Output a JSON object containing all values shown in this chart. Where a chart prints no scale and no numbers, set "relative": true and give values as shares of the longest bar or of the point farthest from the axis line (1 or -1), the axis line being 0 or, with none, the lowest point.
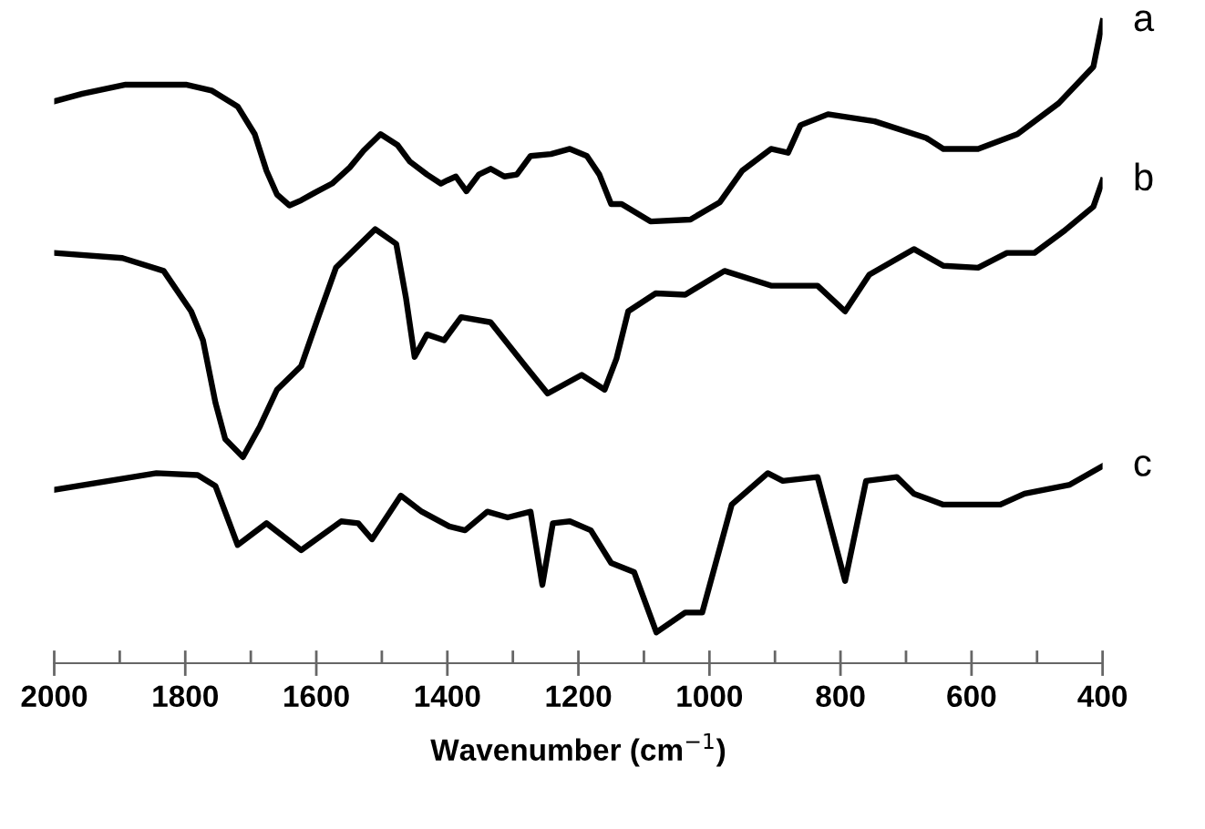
{
  "chart_data": {
    "type": "line",
    "relative": true,
    "xlabel": "Wavenumber (cm$^{−1}$)",
    "xlim": [
      2000,
      400
    ],
    "xticks": [
      2000,
      {
        "value": 1900,
        "label": null
      },
      1800,
      {
        "value": 1700,
        "label": null
      },
      1600,
      {
        "value": 1500,
        "label": null
      },
      1400,
      {
        "value": 1300,
        "label": null
      },
      1200,
      {
        "value": 1100,
        "label": null
      },
      1000,
      {
        "value": 900,
        "label": null
      },
      800,
      {
        "value": 700,
        "label": null
      },
      600,
      {
        "value": 500,
        "label": null
      },
      400
    ],
    "tick_labels": "x",
    "grid": false,
    "legend": false,
    "marker": "none",
    "line_style": "solid",
    "series": [
      {
        "name": "a",
        "color": "#000000",
        "x": [
          2000,
          1957,
          1891,
          1799,
          1760,
          1720,
          1694,
          1676,
          1660,
          1641,
          1623,
          1602,
          1576,
          1549,
          1528,
          1502,
          1476,
          1457,
          1431,
          1410,
          1400,
          1387,
          1371,
          1352,
          1334,
          1313,
          1294,
          1273,
          1242,
          1213,
          1187,
          1168,
          1150,
          1134,
          1090,
          1029,
          984,
          950,
          906,
          880,
          861,
          819,
          748,
          669,
          643,
          590,
          530,
          467,
          414,
          400
        ],
        "values": [
          0.875,
          0.887,
          0.901,
          0.901,
          0.892,
          0.867,
          0.824,
          0.767,
          0.73,
          0.713,
          0.721,
          0.733,
          0.747,
          0.772,
          0.798,
          0.824,
          0.807,
          0.781,
          0.761,
          0.747,
          0.752,
          0.758,
          0.735,
          0.761,
          0.77,
          0.758,
          0.761,
          0.79,
          0.793,
          0.801,
          0.79,
          0.761,
          0.715,
          0.715,
          0.688,
          0.691,
          0.718,
          0.767,
          0.801,
          0.795,
          0.838,
          0.855,
          0.844,
          0.818,
          0.801,
          0.801,
          0.824,
          0.872,
          0.929,
          1.0
        ]
      },
      {
        "name": "b",
        "color": "#000000",
        "x": [
          2000,
          1896,
          1833,
          1791,
          1773,
          1754,
          1739,
          1712,
          1686,
          1660,
          1623,
          1597,
          1570,
          1510,
          1478,
          1463,
          1450,
          1431,
          1405,
          1379,
          1334,
          1281,
          1247,
          1195,
          1160,
          1142,
          1124,
          1082,
          1037,
          977,
          906,
          835,
          793,
          756,
          688,
          643,
          590,
          546,
          504,
          459,
          414,
          400
        ],
        "values": [
          0.639,
          0.631,
          0.611,
          0.548,
          0.503,
          0.406,
          0.349,
          0.321,
          0.369,
          0.426,
          0.463,
          0.539,
          0.616,
          0.676,
          0.653,
          0.568,
          0.477,
          0.512,
          0.503,
          0.539,
          0.531,
          0.463,
          0.42,
          0.449,
          0.426,
          0.474,
          0.548,
          0.576,
          0.574,
          0.611,
          0.588,
          0.588,
          0.548,
          0.605,
          0.645,
          0.619,
          0.616,
          0.639,
          0.639,
          0.673,
          0.711,
          0.752
        ]
      },
      {
        "name": "c",
        "color": "#000000",
        "x": [
          2000,
          1844,
          1781,
          1754,
          1720,
          1676,
          1623,
          1562,
          1536,
          1515,
          1471,
          1439,
          1397,
          1373,
          1339,
          1308,
          1273,
          1255,
          1239,
          1213,
          1181,
          1150,
          1115,
          1081,
          1037,
          1011,
          966,
          911,
          888,
          835,
          793,
          761,
          714,
          688,
          643,
          556,
          519,
          450,
          400
        ],
        "values": [
          0.27,
          0.296,
          0.293,
          0.276,
          0.184,
          0.218,
          0.176,
          0.221,
          0.218,
          0.193,
          0.261,
          0.236,
          0.213,
          0.207,
          0.236,
          0.227,
          0.236,
          0.122,
          0.218,
          0.221,
          0.207,
          0.156,
          0.142,
          0.048,
          0.079,
          0.079,
          0.247,
          0.296,
          0.284,
          0.29,
          0.128,
          0.284,
          0.29,
          0.264,
          0.247,
          0.247,
          0.264,
          0.278,
          0.307
        ]
      }
    ]
  }
}
